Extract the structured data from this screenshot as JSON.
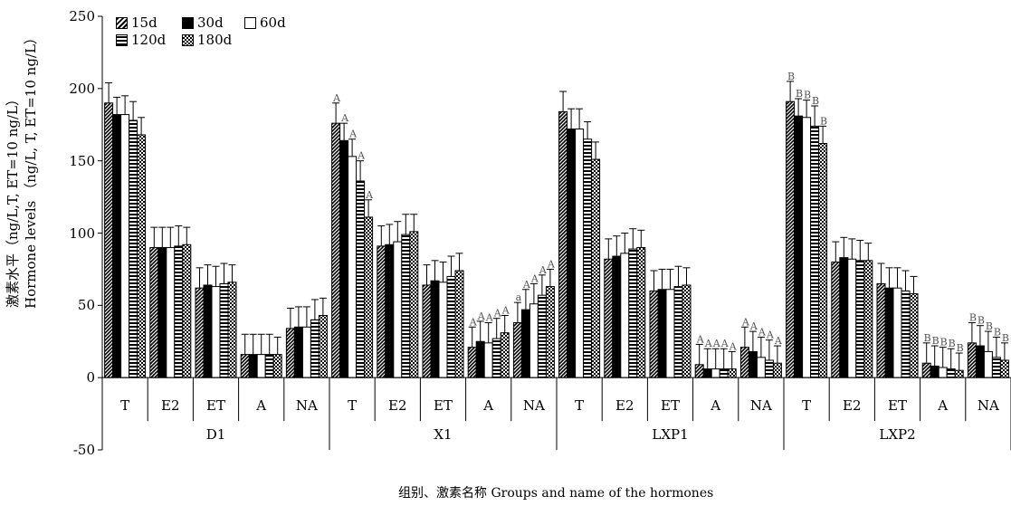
{
  "chart_data": {
    "type": "bar",
    "groups": [
      "D1",
      "X1",
      "LXP1",
      "LXP2"
    ],
    "hormones": [
      "T",
      "E2",
      "ET",
      "A",
      "NA"
    ],
    "ylim": [
      -50,
      250
    ],
    "yticks": [
      250,
      200,
      150,
      100,
      50,
      0,
      -50
    ],
    "ylabel_cn": "激素水平（ng/L,T, ET=10 ng/L）",
    "ylabel_en": "Hormone levels （ng/L, T, ET=10 ng/L）",
    "xlabel": "组别、激素名称   Groups and name of the hormones",
    "series": [
      {
        "name": "15d",
        "pattern": "diag"
      },
      {
        "name": "30d",
        "pattern": "solid"
      },
      {
        "name": "60d",
        "pattern": "white"
      },
      {
        "name": "120d",
        "pattern": "hstripe"
      },
      {
        "name": "180d",
        "pattern": "check"
      }
    ],
    "values": [
      [
        [
          190,
          182,
          182,
          178,
          168
        ],
        [
          90,
          90,
          90,
          91,
          92
        ],
        [
          62,
          64,
          63,
          65,
          66
        ],
        [
          16,
          16,
          16,
          16,
          16
        ],
        [
          34,
          35,
          35,
          40,
          43
        ]
      ],
      [
        [
          176,
          164,
          153,
          136,
          111
        ],
        [
          91,
          92,
          94,
          99,
          101
        ],
        [
          64,
          67,
          66,
          70,
          74
        ],
        [
          21,
          25,
          24,
          27,
          31
        ],
        [
          38,
          47,
          51,
          57,
          63
        ]
      ],
      [
        [
          184,
          172,
          172,
          165,
          151
        ],
        [
          82,
          84,
          86,
          89,
          90
        ],
        [
          60,
          61,
          61,
          63,
          64
        ],
        [
          9,
          6,
          6,
          6,
          6
        ],
        [
          21,
          18,
          14,
          12,
          10
        ]
      ],
      [
        [
          191,
          181,
          180,
          174,
          162
        ],
        [
          80,
          83,
          82,
          81,
          81
        ],
        [
          65,
          62,
          62,
          60,
          58
        ],
        [
          10,
          8,
          7,
          6,
          5
        ],
        [
          24,
          22,
          18,
          14,
          12
        ]
      ]
    ],
    "errors": [
      [
        [
          14,
          12,
          13,
          13,
          12
        ],
        [
          14,
          14,
          14,
          14,
          12
        ],
        [
          14,
          14,
          14,
          14,
          12
        ],
        [
          14,
          14,
          14,
          14,
          12
        ],
        [
          14,
          14,
          14,
          14,
          12
        ]
      ],
      [
        [
          14,
          12,
          12,
          14,
          12
        ],
        [
          14,
          14,
          14,
          14,
          12
        ],
        [
          14,
          14,
          14,
          14,
          12
        ],
        [
          14,
          14,
          14,
          14,
          12
        ],
        [
          14,
          14,
          14,
          14,
          12
        ]
      ],
      [
        [
          14,
          14,
          14,
          12,
          12
        ],
        [
          14,
          14,
          14,
          14,
          12
        ],
        [
          14,
          14,
          14,
          14,
          12
        ],
        [
          14,
          14,
          14,
          14,
          12
        ],
        [
          14,
          14,
          14,
          14,
          12
        ]
      ],
      [
        [
          14,
          12,
          12,
          14,
          12
        ],
        [
          14,
          14,
          14,
          14,
          12
        ],
        [
          14,
          14,
          14,
          14,
          12
        ],
        [
          14,
          14,
          14,
          14,
          12
        ],
        [
          14,
          14,
          14,
          14,
          12
        ]
      ]
    ],
    "annotations": [
      {
        "group": 1,
        "hormone": 0,
        "labels": [
          "A",
          "A",
          "A",
          "A",
          "A"
        ]
      },
      {
        "group": 1,
        "hormone": 3,
        "labels": [
          "A",
          "A",
          "A",
          "A",
          "A"
        ]
      },
      {
        "group": 1,
        "hormone": 4,
        "labels": [
          "a",
          "A",
          "A",
          "A",
          "A"
        ]
      },
      {
        "group": 2,
        "hormone": 3,
        "labels": [
          "A",
          "A",
          "A",
          "A",
          "A"
        ]
      },
      {
        "group": 2,
        "hormone": 4,
        "labels": [
          "A",
          "A",
          "A",
          "A",
          "A"
        ]
      },
      {
        "group": 3,
        "hormone": 0,
        "labels": [
          "B",
          "B",
          "B",
          "B",
          "B"
        ]
      },
      {
        "group": 3,
        "hormone": 3,
        "labels": [
          "B",
          "B",
          "B",
          "B",
          "B"
        ]
      },
      {
        "group": 3,
        "hormone": 4,
        "labels": [
          "B",
          "B",
          "B",
          "B",
          "B"
        ]
      }
    ]
  }
}
